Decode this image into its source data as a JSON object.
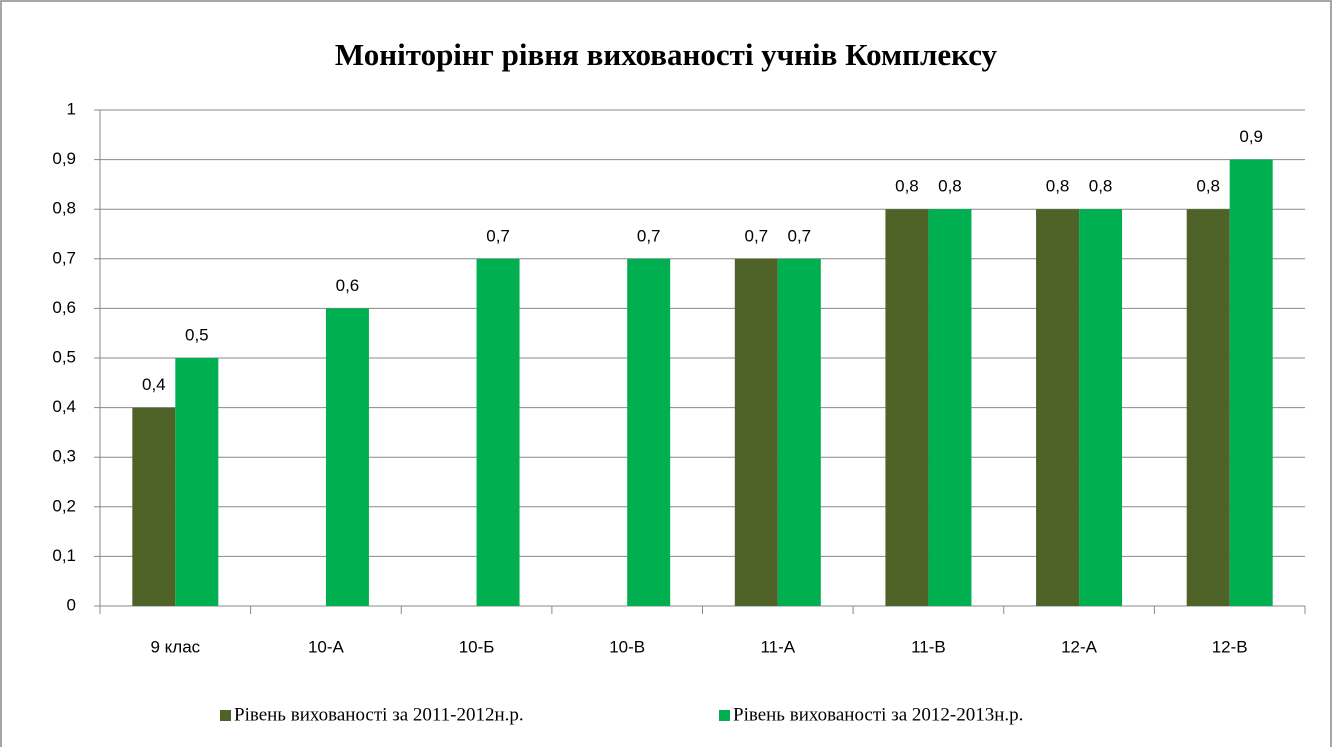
{
  "chart_data": {
    "type": "bar",
    "title": "Моніторінг рівня вихованості учнів Комплексу",
    "categories": [
      "9 клас",
      "10-А",
      "10-Б",
      "10-В",
      "11-А",
      "11-В",
      "12-А",
      "12-В"
    ],
    "series": [
      {
        "name": "Рівень вихованості за 2011-2012н.р.",
        "color": "#4f6228",
        "values": [
          0.4,
          null,
          null,
          null,
          0.7,
          0.8,
          0.8,
          0.8
        ],
        "value_labels": [
          "0,4",
          null,
          null,
          null,
          "0,7",
          "0,8",
          "0,8",
          "0,8"
        ]
      },
      {
        "name": "Рівень вихованості за 2012-2013н.р.",
        "color": "#00b050",
        "values": [
          0.5,
          0.6,
          0.7,
          0.7,
          0.7,
          0.8,
          0.8,
          0.9
        ],
        "value_labels": [
          "0,5",
          "0,6",
          "0,7",
          "0,7",
          "0,7",
          "0,8",
          "0,8",
          "0,9"
        ]
      }
    ],
    "ylim": [
      0,
      1
    ],
    "yticks": [
      0,
      {
        "value": 0.1,
        "label": "0,1"
      },
      {
        "value": 0.2,
        "label": "0,2"
      },
      {
        "value": 0.3,
        "label": "0,3"
      },
      {
        "value": 0.4,
        "label": "0,4"
      },
      {
        "value": 0.5,
        "label": "0,5"
      },
      {
        "value": 0.6,
        "label": "0,6"
      },
      {
        "value": 0.7,
        "label": "0,7"
      },
      {
        "value": 0.8,
        "label": "0,8"
      },
      {
        "value": 0.9,
        "label": "0,9"
      },
      1
    ],
    "grid": true,
    "legend": "bottom"
  }
}
